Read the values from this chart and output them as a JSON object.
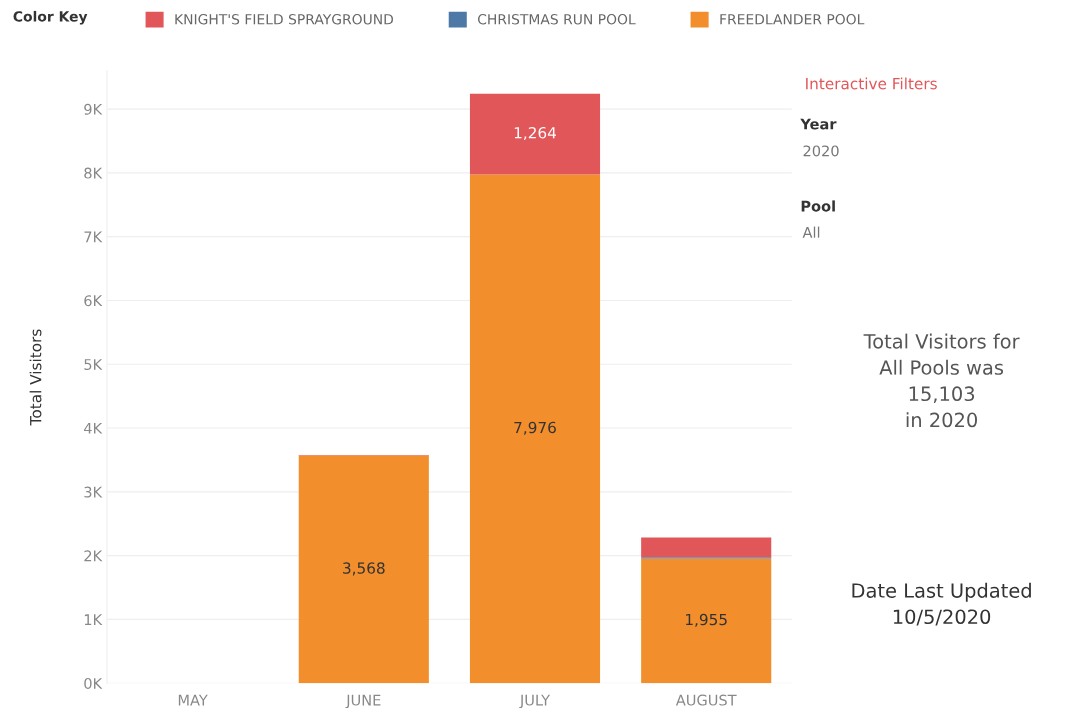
{
  "chart_data": {
    "type": "bar",
    "stacked": true,
    "ylabel": "Total Visitors",
    "legend_title": "Color Key",
    "categories": [
      "MAY",
      "JUNE",
      "JULY",
      "AUGUST"
    ],
    "series": [
      {
        "name": "FREEDLANDER POOL",
        "color": "#f28e2b",
        "values": [
          null,
          3568,
          7976,
          1955
        ],
        "value_labels": [
          null,
          "3,568",
          "7,976",
          "1,955"
        ]
      },
      {
        "name": "CHRISTMAS RUN POOL",
        "color": "#4e79a7",
        "values": [
          null,
          null,
          null,
          20
        ]
      },
      {
        "name": "KNIGHT'S FIELD SPRAYGROUND",
        "color": "#e15759",
        "values": [
          null,
          10,
          1264,
          310
        ],
        "value_labels": [
          null,
          null,
          "1,264",
          null
        ]
      }
    ],
    "ylim": [
      0,
      9600
    ],
    "yticks": [
      {
        "value": 0,
        "label": "0K"
      },
      {
        "value": 1000,
        "label": "1K"
      },
      {
        "value": 2000,
        "label": "2K"
      },
      {
        "value": 3000,
        "label": "3K"
      },
      {
        "value": 4000,
        "label": "4K"
      },
      {
        "value": 5000,
        "label": "5K"
      },
      {
        "value": 6000,
        "label": "6K"
      },
      {
        "value": 7000,
        "label": "7K"
      },
      {
        "value": 8000,
        "label": "8K"
      },
      {
        "value": 9000,
        "label": "9K"
      }
    ],
    "grid": "y",
    "legend": "top",
    "annotations": [
      "Interactive Filters",
      "Year",
      "2020",
      "Pool",
      "All",
      "Total Visitors for\nAll Pools was\n15,103\nin 2020",
      "Date Last Updated\n10/5/2020"
    ]
  }
}
